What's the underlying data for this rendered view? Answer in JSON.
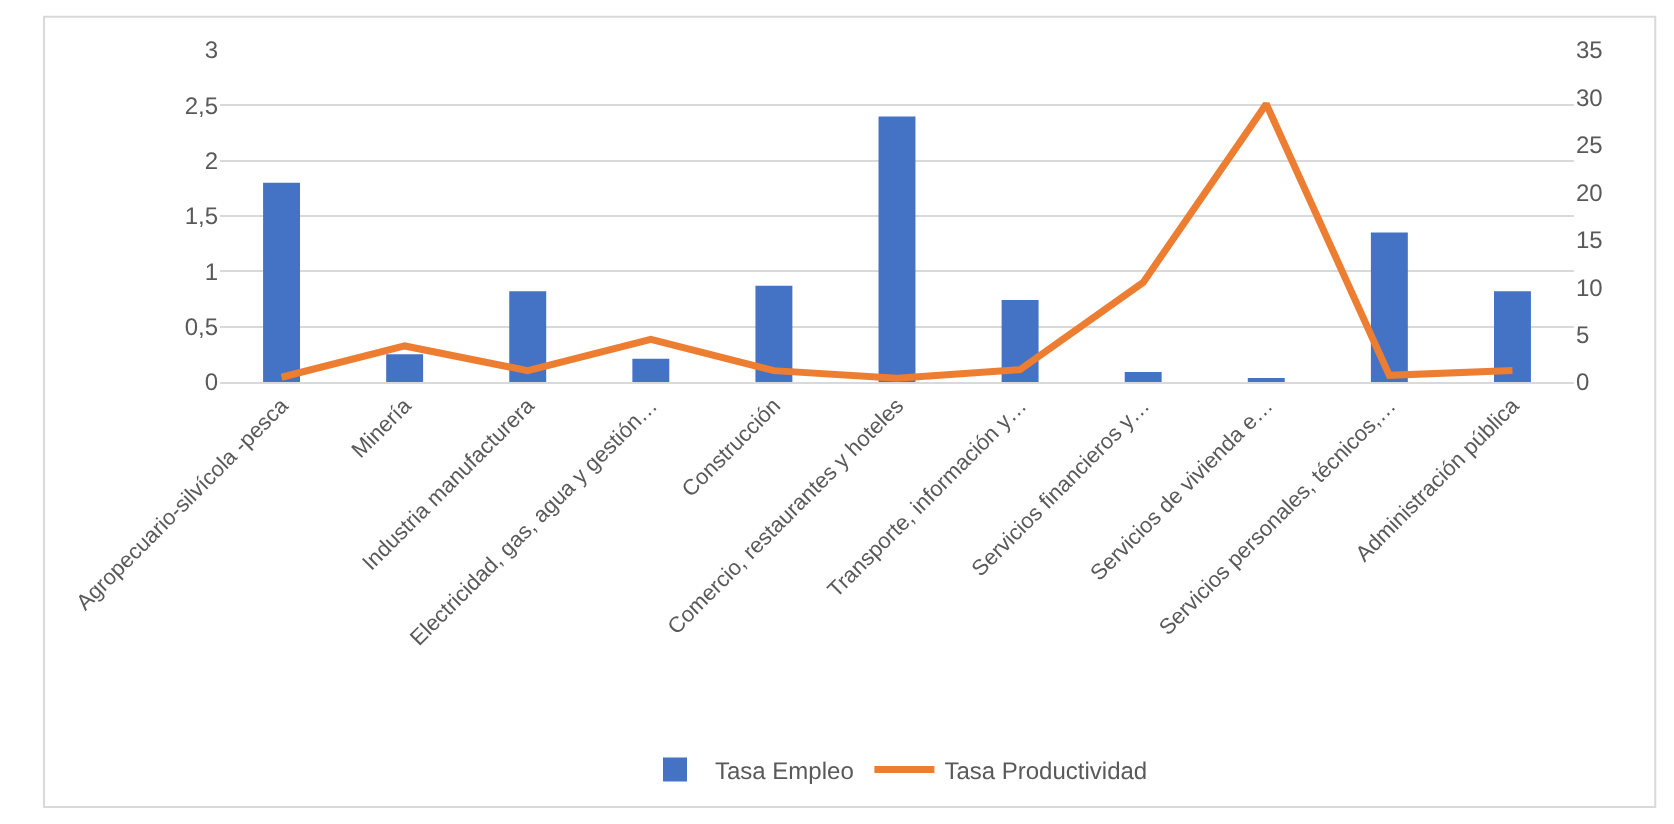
{
  "chart_data": {
    "type": "bar",
    "categories": [
      "Agropecuario-silvícola -pesca",
      "Minería",
      "Industria manufacturera",
      "Electricidad, gas, agua y gestión…",
      "Construcción",
      "Comercio, restaurantes y hoteles",
      "Transporte, información y…",
      "Servicios financieros y…",
      "Servicios de vivienda e…",
      "Servicios personales, técnicos,…",
      "Administración pública"
    ],
    "series": [
      {
        "name": "Tasa Empleo",
        "color": "#4472c4",
        "values": [
          1.8,
          0.25,
          0.82,
          0.21,
          0.87,
          2.4,
          0.74,
          0.09,
          0.03,
          1.35,
          0.82
        ]
      },
      {
        "name": "Tasa Productividad",
        "type": "line",
        "axis": "y2",
        "color": "#ed7d31",
        "values": [
          0.5,
          3.8,
          1.2,
          4.5,
          1.2,
          0.4,
          1.3,
          10.5,
          29.3,
          0.7,
          1.2
        ]
      }
    ],
    "ylim": [
      0,
      3
    ],
    "yticks": [
      0,
      {
        "value": 0.5,
        "label": "0,5"
      },
      1,
      {
        "value": 1.5,
        "label": "1,5"
      },
      2,
      {
        "value": 2.5,
        "label": "2,5"
      },
      3
    ],
    "y2lim": [
      0,
      35
    ],
    "y2ticks": [
      0,
      5,
      10,
      15,
      20,
      25,
      30,
      35
    ],
    "grid": "y",
    "legend": "bottom",
    "marker": "none"
  }
}
